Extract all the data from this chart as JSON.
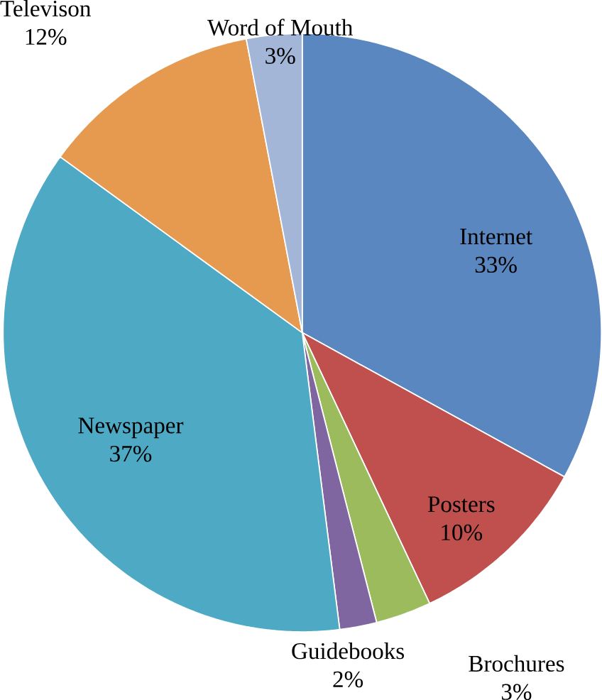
{
  "chart_data": {
    "type": "pie",
    "categories": [
      "Internet",
      "Posters",
      "Brochures",
      "Guidebooks",
      "Newspaper",
      "Televison",
      "Word of Mouth"
    ],
    "values": [
      33,
      10,
      3,
      2,
      37,
      12,
      3
    ],
    "value_labels": [
      "33%",
      "10%",
      "3%",
      "2%",
      "37%",
      "12%",
      "3%"
    ],
    "colors": [
      "#5a87bf",
      "#c0504d",
      "#9bbb5c",
      "#8066a0",
      "#4eaac4",
      "#e59a4f",
      "#a4b6d8"
    ]
  }
}
